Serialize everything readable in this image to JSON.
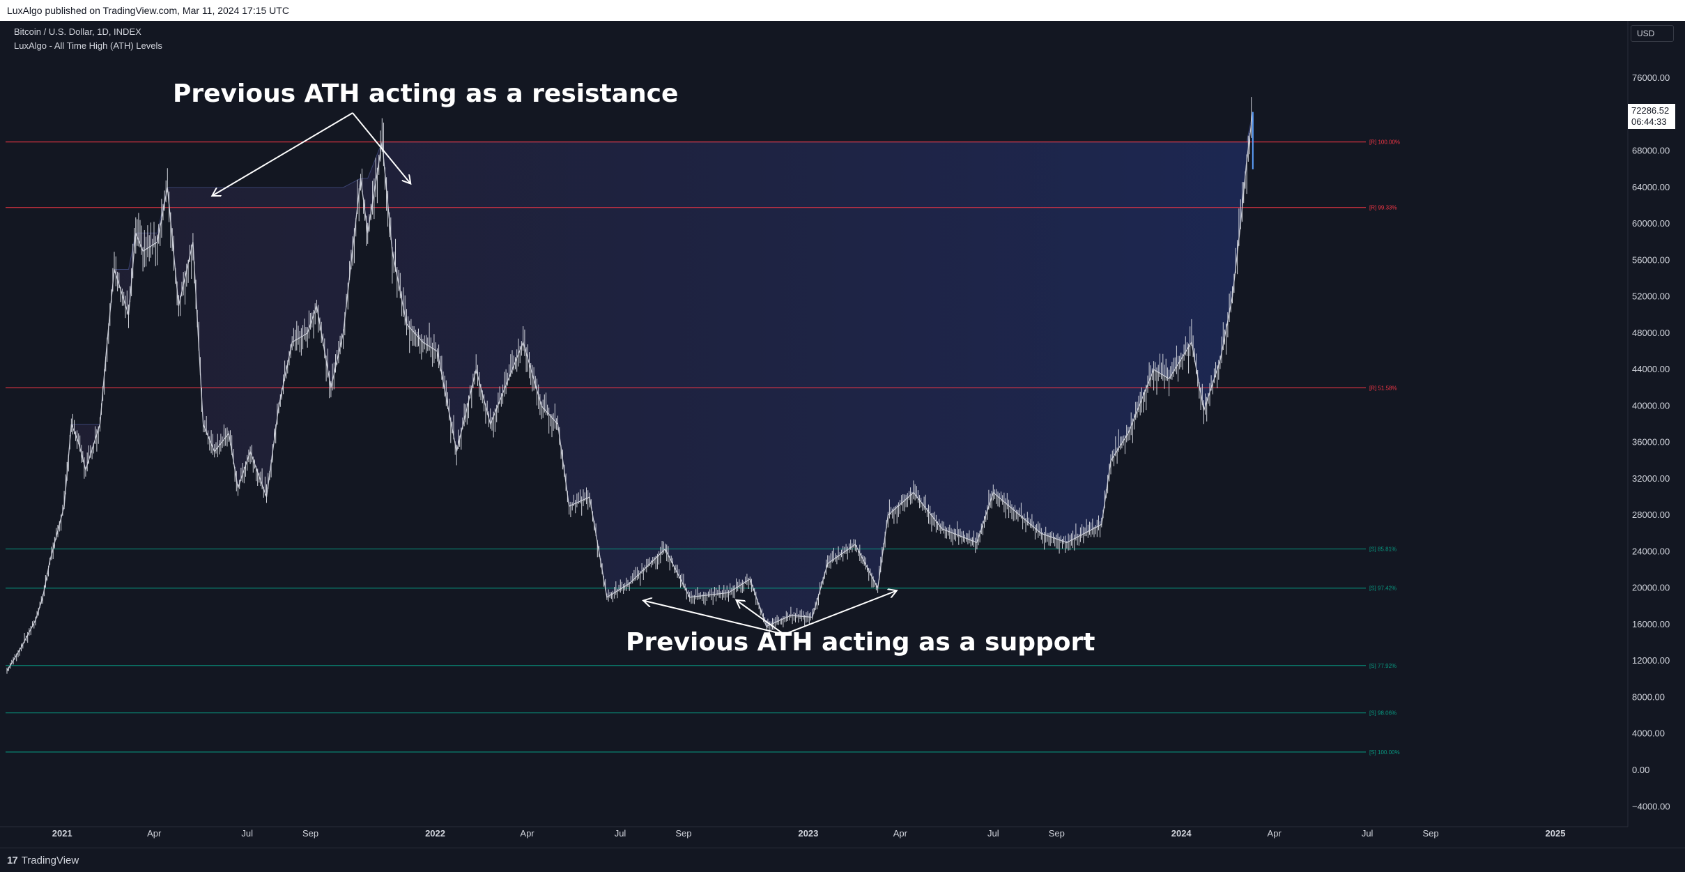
{
  "header": {
    "published_text": "LuxAlgo published on TradingView.com, Mar 11, 2024 17:15 UTC"
  },
  "legend": {
    "symbol_line": "Bitcoin / U.S. Dollar, 1D, INDEX",
    "indicator_line": "LuxAlgo - All Time High (ATH) Levels"
  },
  "currency": "USD",
  "last_price": {
    "value": "72286.52",
    "countdown": "06:44:33"
  },
  "footer": {
    "brand": "TradingView",
    "logo_glyph": "17"
  },
  "annotations": [
    {
      "id": "resistance",
      "text": "Previous ATH acting as a resistance"
    },
    {
      "id": "support",
      "text": "Previous ATH acting as a support"
    }
  ],
  "colors": {
    "background": "#131722",
    "resistance_line": "#f23645",
    "support_line": "#089981",
    "ath_fill": "#1e2a55",
    "candles": "#d1d4dc",
    "annotation": "#ffffff"
  },
  "chart_data": {
    "type": "line",
    "series": [
      {
        "values": [
          [
            "2020-11-08",
            10900
          ],
          [
            "2020-11-22",
            13500
          ],
          [
            "2020-12-06",
            16500
          ],
          [
            "2020-12-13",
            19000
          ],
          [
            "2020-12-20",
            23000
          ],
          [
            "2021-01-03",
            29000
          ],
          [
            "2021-01-10",
            38000
          ],
          [
            "2021-01-17",
            36000
          ],
          [
            "2021-01-24",
            33000
          ],
          [
            "2021-02-07",
            38000
          ],
          [
            "2021-02-14",
            47000
          ],
          [
            "2021-02-21",
            55000
          ],
          [
            "2021-03-07",
            50000
          ],
          [
            "2021-03-14",
            59000
          ],
          [
            "2021-03-21",
            57000
          ],
          [
            "2021-04-04",
            58000
          ],
          [
            "2021-04-14",
            64000
          ],
          [
            "2021-04-25",
            51000
          ],
          [
            "2021-05-09",
            58000
          ],
          [
            "2021-05-19",
            38000
          ],
          [
            "2021-05-30",
            35000
          ],
          [
            "2021-06-13",
            37000
          ],
          [
            "2021-06-22",
            31000
          ],
          [
            "2021-07-04",
            35000
          ],
          [
            "2021-07-20",
            30000
          ],
          [
            "2021-08-01",
            40000
          ],
          [
            "2021-08-14",
            47000
          ],
          [
            "2021-08-29",
            48000
          ],
          [
            "2021-09-07",
            51000
          ],
          [
            "2021-09-21",
            42000
          ],
          [
            "2021-10-03",
            48000
          ],
          [
            "2021-10-20",
            65000
          ],
          [
            "2021-10-27",
            59000
          ],
          [
            "2021-11-10",
            69000
          ],
          [
            "2021-11-20",
            57000
          ],
          [
            "2021-12-04",
            49000
          ],
          [
            "2021-12-20",
            47000
          ],
          [
            "2022-01-03",
            46000
          ],
          [
            "2022-01-22",
            35000
          ],
          [
            "2022-02-10",
            44000
          ],
          [
            "2022-02-24",
            38000
          ],
          [
            "2022-03-28",
            47000
          ],
          [
            "2022-04-15",
            40000
          ],
          [
            "2022-05-01",
            38000
          ],
          [
            "2022-05-12",
            29000
          ],
          [
            "2022-06-01",
            30000
          ],
          [
            "2022-06-18",
            19000
          ],
          [
            "2022-07-10",
            20500
          ],
          [
            "2022-08-14",
            24300
          ],
          [
            "2022-09-07",
            19000
          ],
          [
            "2022-10-15",
            19500
          ],
          [
            "2022-11-05",
            21000
          ],
          [
            "2022-11-21",
            15800
          ],
          [
            "2022-12-15",
            17000
          ],
          [
            "2023-01-05",
            16800
          ],
          [
            "2023-01-20",
            22700
          ],
          [
            "2023-02-16",
            24800
          ],
          [
            "2023-03-10",
            20000
          ],
          [
            "2023-03-20",
            28000
          ],
          [
            "2023-04-14",
            30500
          ],
          [
            "2023-05-12",
            26500
          ],
          [
            "2023-06-15",
            25000
          ],
          [
            "2023-07-01",
            30500
          ],
          [
            "2023-08-17",
            26000
          ],
          [
            "2023-09-11",
            25000
          ],
          [
            "2023-10-15",
            27000
          ],
          [
            "2023-10-24",
            34000
          ],
          [
            "2023-11-10",
            37000
          ],
          [
            "2023-12-05",
            44000
          ],
          [
            "2023-12-20",
            43000
          ],
          [
            "2024-01-11",
            47000
          ],
          [
            "2024-01-23",
            39500
          ],
          [
            "2024-02-08",
            45000
          ],
          [
            "2024-02-20",
            52000
          ],
          [
            "2024-02-28",
            60000
          ],
          [
            "2024-03-05",
            67000
          ],
          [
            "2024-03-11",
            72286.52
          ]
        ]
      }
    ],
    "ath_levels": [
      {
        "side": "R",
        "label": "[R] 100.00%",
        "price": 69000
      },
      {
        "side": "R",
        "label": "[R] 99.33%",
        "price": 61800
      },
      {
        "side": "R",
        "label": "[R] 51.58%",
        "price": 42000
      },
      {
        "side": "S",
        "label": "[S] 85.81%",
        "price": 24300
      },
      {
        "side": "S",
        "label": "[S] 97.42%",
        "price": 20000
      },
      {
        "side": "S",
        "label": "[S] 77.92%",
        "price": 11500
      },
      {
        "side": "S",
        "label": "[S] 98.06%",
        "price": 6300
      },
      {
        "side": "S",
        "label": "[S] 100.00%",
        "price": 2000
      }
    ],
    "y_ticks": [
      "76000.00",
      "72000.00",
      "68000.00",
      "64000.00",
      "60000.00",
      "56000.00",
      "52000.00",
      "48000.00",
      "44000.00",
      "40000.00",
      "36000.00",
      "32000.00",
      "28000.00",
      "24000.00",
      "20000.00",
      "16000.00",
      "12000.00",
      "8000.00",
      "4000.00",
      "0.00",
      "−4000.00"
    ],
    "x_ticks": [
      "2021",
      "Apr",
      "Jul",
      "Sep",
      "2022",
      "Apr",
      "Jul",
      "Sep",
      "2023",
      "Apr",
      "Jul",
      "Sep",
      "2024",
      "Apr",
      "Jul",
      "Sep",
      "2025"
    ],
    "ylim": [
      -5000,
      80000
    ],
    "grid": false,
    "legend_position": "top-left"
  }
}
